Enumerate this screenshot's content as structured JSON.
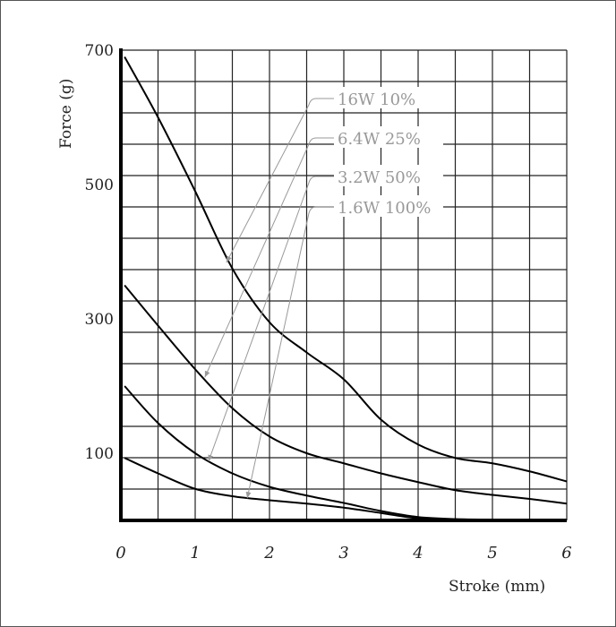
{
  "chart_data": {
    "type": "line",
    "title": "",
    "xlabel": "Stroke (mm)",
    "ylabel": "Force (g)",
    "xlim": [
      0,
      6
    ],
    "ylim": [
      0,
      700
    ],
    "x_ticks": [
      0,
      1,
      2,
      3,
      4,
      5,
      6
    ],
    "x_tick_labels": [
      "0",
      "1",
      "2",
      "3",
      "4",
      "5",
      "6"
    ],
    "y_ticks": [
      100,
      300,
      500,
      700
    ],
    "y_tick_labels": [
      "100",
      "300",
      "500",
      "700"
    ],
    "grid": true,
    "grid_x_step": 0.5,
    "grid_y_divisions": 15,
    "line_color": "#000000",
    "annotation_color": "#999999",
    "series": [
      {
        "name": "16W 10%",
        "points": [
          [
            0.05,
            690
          ],
          [
            0.5,
            600
          ],
          [
            1,
            490
          ],
          [
            1.5,
            375
          ],
          [
            2,
            295
          ],
          [
            2.5,
            250
          ],
          [
            3,
            210
          ],
          [
            3.5,
            150
          ],
          [
            4,
            113
          ],
          [
            4.5,
            93
          ],
          [
            5,
            85
          ],
          [
            5.5,
            73
          ],
          [
            6,
            58
          ]
        ],
        "arrow_target": [
          1.42,
          384
        ]
      },
      {
        "name": "6.4W 25%",
        "points": [
          [
            0.05,
            350
          ],
          [
            0.5,
            290
          ],
          [
            1,
            225
          ],
          [
            1.5,
            167
          ],
          [
            2,
            125
          ],
          [
            2.5,
            100
          ],
          [
            3,
            85
          ],
          [
            3.5,
            70
          ],
          [
            4,
            57
          ],
          [
            4.5,
            45
          ],
          [
            5,
            38
          ],
          [
            5.5,
            32
          ],
          [
            6,
            25
          ]
        ],
        "arrow_target": [
          1.13,
          213
        ]
      },
      {
        "name": "3.2W 50%",
        "points": [
          [
            0.05,
            200
          ],
          [
            0.5,
            145
          ],
          [
            1,
            100
          ],
          [
            1.5,
            70
          ],
          [
            2,
            50
          ],
          [
            2.5,
            37
          ],
          [
            3,
            26
          ],
          [
            3.5,
            14
          ],
          [
            4,
            5
          ],
          [
            4.5,
            2
          ],
          [
            5,
            1
          ],
          [
            6,
            0
          ]
        ],
        "arrow_target": [
          1.18,
          88
        ]
      },
      {
        "name": "1.6W 100%",
        "points": [
          [
            0.05,
            93
          ],
          [
            0.5,
            70
          ],
          [
            1,
            47
          ],
          [
            1.5,
            36
          ],
          [
            2,
            30
          ],
          [
            2.5,
            25
          ],
          [
            3,
            19
          ],
          [
            3.5,
            11
          ],
          [
            4,
            3
          ],
          [
            4.5,
            1
          ],
          [
            5,
            0
          ],
          [
            6,
            0
          ]
        ],
        "arrow_target": [
          1.7,
          33
        ]
      }
    ]
  }
}
